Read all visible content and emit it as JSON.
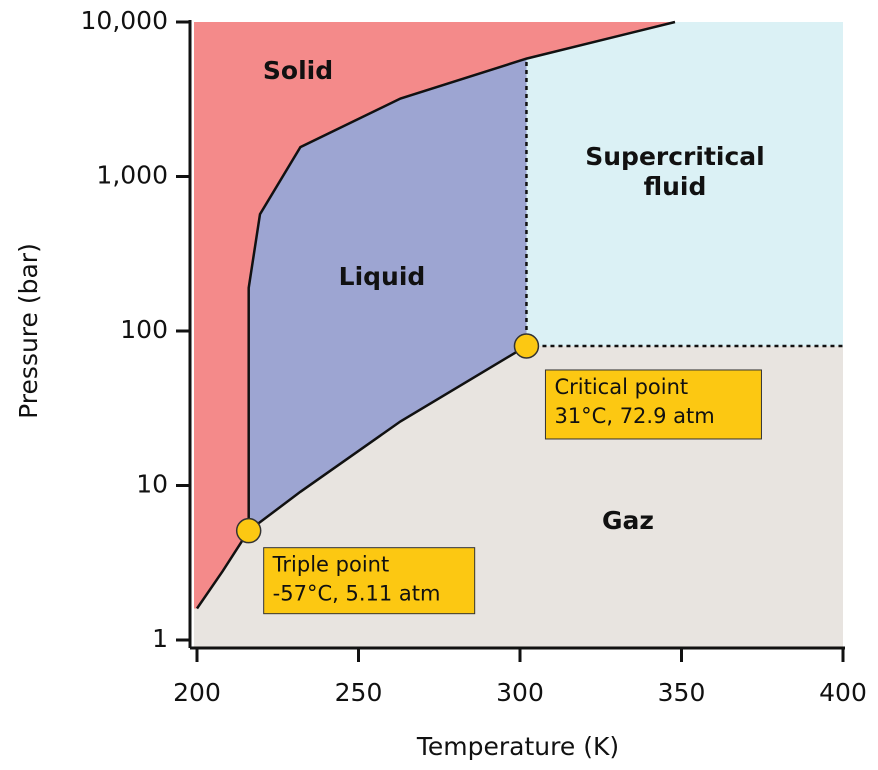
{
  "chart_data": {
    "type": "phase_diagram",
    "x_label": "Temperature (K)",
    "y_label": "Pressure (bar)",
    "xlim": [
      200,
      400
    ],
    "ylim": [
      1,
      10000
    ],
    "xticks": [
      200,
      250,
      300,
      350,
      400
    ],
    "yticks": [
      1,
      10,
      100,
      {
        "value": 1000,
        "label": "1,000"
      },
      {
        "value": 10000,
        "label": "10,000"
      }
    ],
    "log_y": true,
    "curves": {
      "sublimation": {
        "x": [
          200,
          208,
          216
        ],
        "y": [
          1.6,
          2.8,
          5.1
        ]
      },
      "vaporization": {
        "x": [
          216,
          232,
          263,
          302
        ],
        "y": [
          5.1,
          9.1,
          26,
          80
        ]
      },
      "melting": {
        "x": [
          216,
          216,
          219.5,
          232,
          263,
          302,
          348
        ],
        "y": [
          5.1,
          190,
          570,
          1550,
          3200,
          5800,
          10000
        ]
      }
    },
    "regions": [
      {
        "name": "Solid",
        "lines": [
          "Solid"
        ],
        "color": "#f48a8a"
      },
      {
        "name": "Liquid",
        "lines": [
          "Liquid"
        ],
        "color": "#9da5d2"
      },
      {
        "name": "Supercritical fluid",
        "lines": [
          "Supercritical",
          "fluid"
        ],
        "color": "#dbf1f5"
      },
      {
        "name": "Gaz",
        "lines": [
          "Gaz"
        ],
        "color": "#e8e4e0"
      }
    ],
    "points": [
      {
        "x": 216,
        "y": 5.1,
        "lines": [
          "Triple point",
          "-57°C, 5.11 atm"
        ]
      },
      {
        "x": 302,
        "y": 80,
        "lines": [
          "Critical point",
          "31°C, 72.9 atm"
        ]
      }
    ],
    "point_color": "#fcc812"
  }
}
